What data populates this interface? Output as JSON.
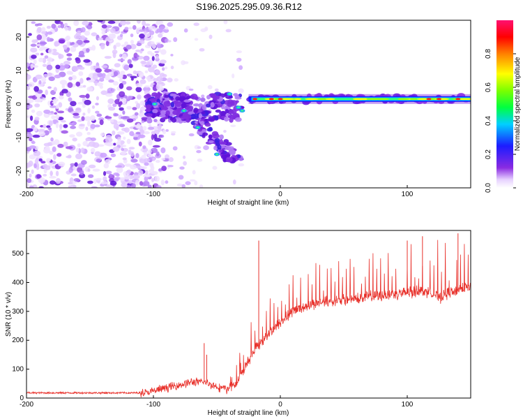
{
  "title": "S196.2025.295.09.36.R12",
  "chart_data": [
    {
      "type": "heatmap",
      "name": "spectrogram",
      "xlabel": "Height of straight line (km)",
      "ylabel": "Frequency (Hz)",
      "xlim": [
        -200,
        150
      ],
      "ylim": [
        -25,
        25
      ],
      "xticks": [
        -200,
        -100,
        0,
        100
      ],
      "yticks": [
        -20,
        -10,
        0,
        10,
        20
      ],
      "colorbar": {
        "label": "Normalized spectral amplitude",
        "range": [
          0,
          1
        ],
        "ticks": [
          0.0,
          0.2,
          0.4,
          0.6,
          0.8
        ],
        "tick_labels": [
          "0.0",
          "0.2",
          "0.4",
          "0.6",
          "0.8"
        ]
      },
      "features": [
        {
          "description": "noise speckle",
          "x_range": [
            -200,
            -100
          ],
          "y_range": [
            -25,
            25
          ],
          "amplitude": 0.15
        },
        {
          "description": "transition cluster",
          "x_range": [
            -105,
            -30
          ],
          "y_range": [
            -17,
            5
          ],
          "amplitude": 0.3
        },
        {
          "description": "carrier tone",
          "x_range": [
            -25,
            150
          ],
          "frequency_hz": 1.5,
          "amplitude": 0.7
        }
      ]
    },
    {
      "type": "line",
      "name": "snr",
      "xlabel": "Height of straight line (km)",
      "ylabel": "SNR (10 * v/v)",
      "xlim": [
        -200,
        150
      ],
      "ylim": [
        0,
        580
      ],
      "xticks": [
        -200,
        -100,
        0,
        100
      ],
      "yticks": [
        0,
        100,
        200,
        300,
        400,
        500
      ],
      "series": [
        {
          "name": "SNR",
          "color": "#e8302a",
          "x": [
            -200,
            -180,
            -160,
            -140,
            -120,
            -105,
            -95,
            -80,
            -70,
            -60,
            -50,
            -42,
            -35,
            -28,
            -20,
            -10,
            0,
            10,
            20,
            30,
            40,
            50,
            60,
            70,
            80,
            90,
            100,
            110,
            120,
            125,
            130,
            140,
            150
          ],
          "y": [
            18,
            18,
            18,
            18,
            18,
            18,
            30,
            45,
            55,
            55,
            40,
            30,
            50,
            100,
            170,
            220,
            260,
            300,
            320,
            330,
            335,
            340,
            345,
            350,
            355,
            360,
            365,
            370,
            365,
            345,
            360,
            375,
            385
          ],
          "spikes": [
            {
              "x": -60,
              "y": 190
            },
            {
              "x": -58,
              "y": 150
            },
            {
              "x": -17,
              "y": 545
            },
            {
              "x": 100,
              "y": 545
            },
            {
              "x": 112,
              "y": 560
            },
            {
              "x": 140,
              "y": 570
            }
          ]
        }
      ]
    }
  ]
}
